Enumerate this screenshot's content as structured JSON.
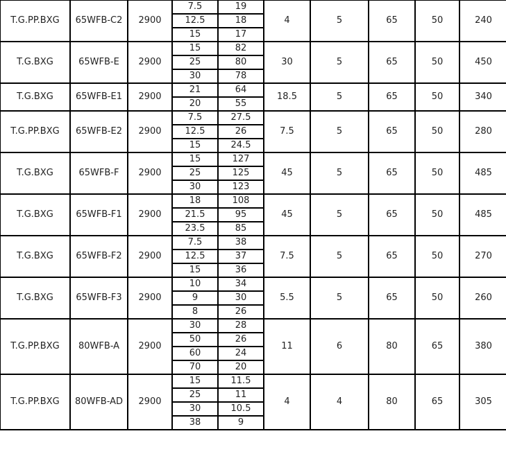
{
  "rows": [
    {
      "material": "T.G.PP.BXG",
      "model": "65WFB-C2",
      "speed": "2900",
      "points": [
        [
          "7.5",
          "19"
        ],
        [
          "12.5",
          "18"
        ],
        [
          "15",
          "17"
        ]
      ],
      "power": "4",
      "c1": "5",
      "c2": "65",
      "c3": "50",
      "c4": "240"
    },
    {
      "material": "T.G.BXG",
      "model": "65WFB-E",
      "speed": "2900",
      "points": [
        [
          "15",
          "82"
        ],
        [
          "25",
          "80"
        ],
        [
          "30",
          "78"
        ]
      ],
      "power": "30",
      "c1": "5",
      "c2": "65",
      "c3": "50",
      "c4": "450"
    },
    {
      "material": "T.G.BXG",
      "model": "65WFB-E1",
      "speed": "2900",
      "points": [
        [
          "21",
          "64"
        ],
        [
          "20",
          "55"
        ]
      ],
      "power": "18.5",
      "c1": "5",
      "c2": "65",
      "c3": "50",
      "c4": "340"
    },
    {
      "material": "T.G.PP.BXG",
      "model": "65WFB-E2",
      "speed": "2900",
      "points": [
        [
          "7.5",
          "27.5"
        ],
        [
          "12.5",
          "26"
        ],
        [
          "15",
          "24.5"
        ]
      ],
      "power": "7.5",
      "c1": "5",
      "c2": "65",
      "c3": "50",
      "c4": "280"
    },
    {
      "material": "T.G.BXG",
      "model": "65WFB-F",
      "speed": "2900",
      "points": [
        [
          "15",
          "127"
        ],
        [
          "25",
          "125"
        ],
        [
          "30",
          "123"
        ]
      ],
      "power": "45",
      "c1": "5",
      "c2": "65",
      "c3": "50",
      "c4": "485"
    },
    {
      "material": "T.G.BXG",
      "model": "65WFB-F1",
      "speed": "2900",
      "points": [
        [
          "18",
          "108"
        ],
        [
          "21.5",
          "95"
        ],
        [
          "23.5",
          "85"
        ]
      ],
      "power": "45",
      "c1": "5",
      "c2": "65",
      "c3": "50",
      "c4": "485"
    },
    {
      "material": "T.G.BXG",
      "model": "65WFB-F2",
      "speed": "2900",
      "points": [
        [
          "7.5",
          "38"
        ],
        [
          "12.5",
          "37"
        ],
        [
          "15",
          "36"
        ]
      ],
      "power": "7.5",
      "c1": "5",
      "c2": "65",
      "c3": "50",
      "c4": "270"
    },
    {
      "material": "T.G.BXG",
      "model": "65WFB-F3",
      "speed": "2900",
      "points": [
        [
          "10",
          "34"
        ],
        [
          "9",
          "30"
        ],
        [
          "8",
          "26"
        ]
      ],
      "power": "5.5",
      "c1": "5",
      "c2": "65",
      "c3": "50",
      "c4": "260"
    },
    {
      "material": "T.G.PP.BXG",
      "model": "80WFB-A",
      "speed": "2900",
      "points": [
        [
          "30",
          "28"
        ],
        [
          "50",
          "26"
        ],
        [
          "60",
          "24"
        ],
        [
          "70",
          "20"
        ]
      ],
      "power": "11",
      "c1": "6",
      "c2": "80",
      "c3": "65",
      "c4": "380"
    },
    {
      "material": "T.G.PP.BXG",
      "model": "80WFB-AD",
      "speed": "2900",
      "points": [
        [
          "15",
          "11.5"
        ],
        [
          "25",
          "11"
        ],
        [
          "30",
          "10.5"
        ],
        [
          "38",
          "9"
        ]
      ],
      "power": "4",
      "c1": "4",
      "c2": "80",
      "c3": "65",
      "c4": "305"
    }
  ]
}
